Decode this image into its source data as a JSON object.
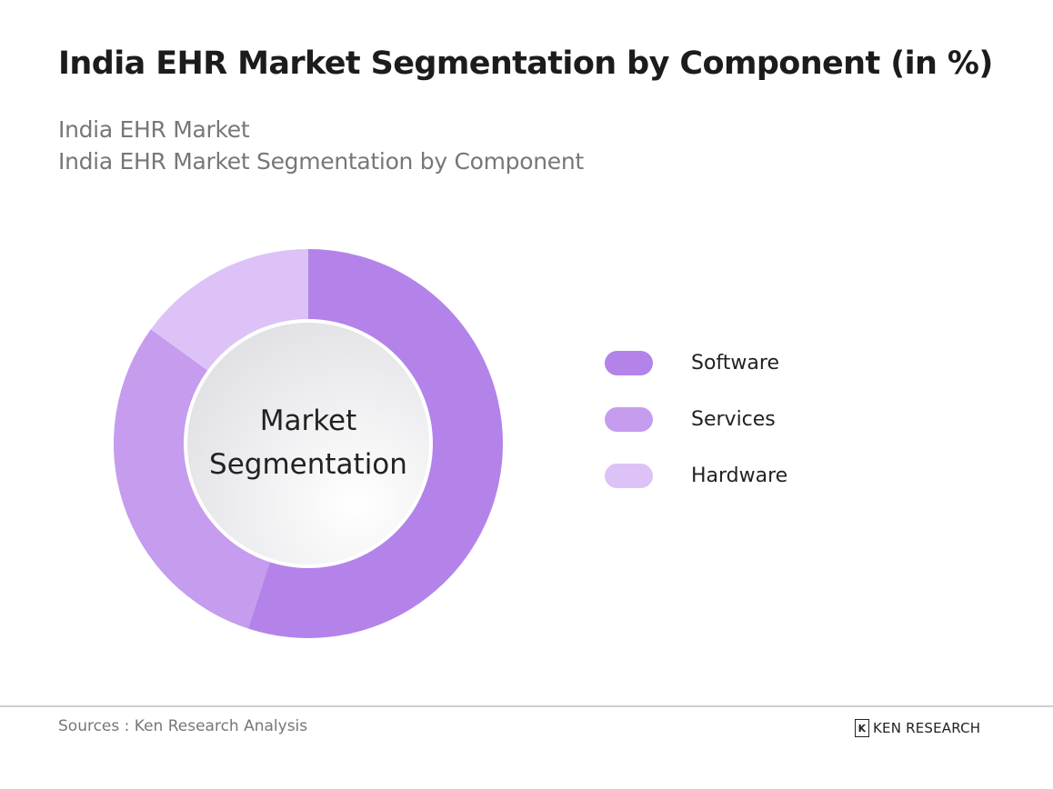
{
  "header": {
    "title": "India EHR Market Segmentation by Component (in %)",
    "subtitle_line1": "India EHR Market",
    "subtitle_line2": "India EHR Market Segmentation by Component"
  },
  "center_label": {
    "line1": "Market",
    "line2": "Segmentation"
  },
  "legend": [
    {
      "label": "Software",
      "color": "#b383ea"
    },
    {
      "label": "Services",
      "color": "#c59cee"
    },
    {
      "label": "Hardware",
      "color": "#dcc2f7"
    }
  ],
  "footer": {
    "source": "Sources : Ken Research Analysis",
    "logo_mark": "K",
    "logo_text": "KEN RESEARCH"
  },
  "chart_data": {
    "type": "pie",
    "subtype": "donut",
    "title": "India EHR Market Segmentation by Component (in %)",
    "subtitle": [
      "India EHR Market",
      "India EHR Market Segmentation by Component"
    ],
    "categories": [
      "Software",
      "Services",
      "Hardware"
    ],
    "values": [
      55,
      30,
      15
    ],
    "colors": [
      "#b383ea",
      "#c59cee",
      "#dcc2f7"
    ],
    "center_text": "Market Segmentation",
    "legend_position": "right",
    "data_labels_shown": false,
    "note": "Values estimated from slice angles; no numeric labels shown."
  }
}
